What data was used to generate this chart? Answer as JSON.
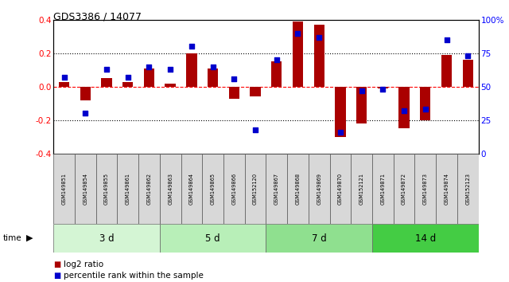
{
  "title": "GDS3386 / 14077",
  "samples": [
    "GSM149851",
    "GSM149854",
    "GSM149855",
    "GSM149861",
    "GSM149862",
    "GSM149863",
    "GSM149864",
    "GSM149865",
    "GSM149866",
    "GSM152120",
    "GSM149867",
    "GSM149868",
    "GSM149869",
    "GSM149870",
    "GSM152121",
    "GSM149871",
    "GSM149872",
    "GSM149873",
    "GSM149874",
    "GSM152123"
  ],
  "log2_ratio": [
    0.03,
    -0.08,
    0.05,
    0.03,
    0.11,
    0.02,
    0.2,
    0.11,
    -0.07,
    -0.06,
    0.15,
    0.39,
    0.37,
    -0.3,
    -0.22,
    -0.01,
    -0.25,
    -0.2,
    0.19,
    0.16
  ],
  "percentile_rank": [
    57,
    30,
    63,
    57,
    65,
    63,
    80,
    65,
    56,
    18,
    70,
    90,
    87,
    16,
    47,
    48,
    32,
    33,
    85,
    73
  ],
  "groups": [
    {
      "label": "3 d",
      "start": 0,
      "end": 5,
      "color": "#d4f5d4"
    },
    {
      "label": "5 d",
      "start": 5,
      "end": 10,
      "color": "#b8efb8"
    },
    {
      "label": "7 d",
      "start": 10,
      "end": 15,
      "color": "#8fe08f"
    },
    {
      "label": "14 d",
      "start": 15,
      "end": 20,
      "color": "#44cc44"
    }
  ],
  "bar_color": "#aa0000",
  "dot_color": "#0000cc",
  "ylim_left": [
    -0.4,
    0.4
  ],
  "ylim_right": [
    0,
    100
  ],
  "yticks_left": [
    -0.4,
    -0.2,
    0.0,
    0.2,
    0.4
  ],
  "yticks_right": [
    0,
    25,
    50,
    75,
    100
  ],
  "ytick_labels_right": [
    "0",
    "25",
    "50",
    "75",
    "100%"
  ],
  "legend_items": [
    "log2 ratio",
    "percentile rank within the sample"
  ],
  "legend_colors": [
    "#aa0000",
    "#0000cc"
  ],
  "bg_color": "#ffffff"
}
